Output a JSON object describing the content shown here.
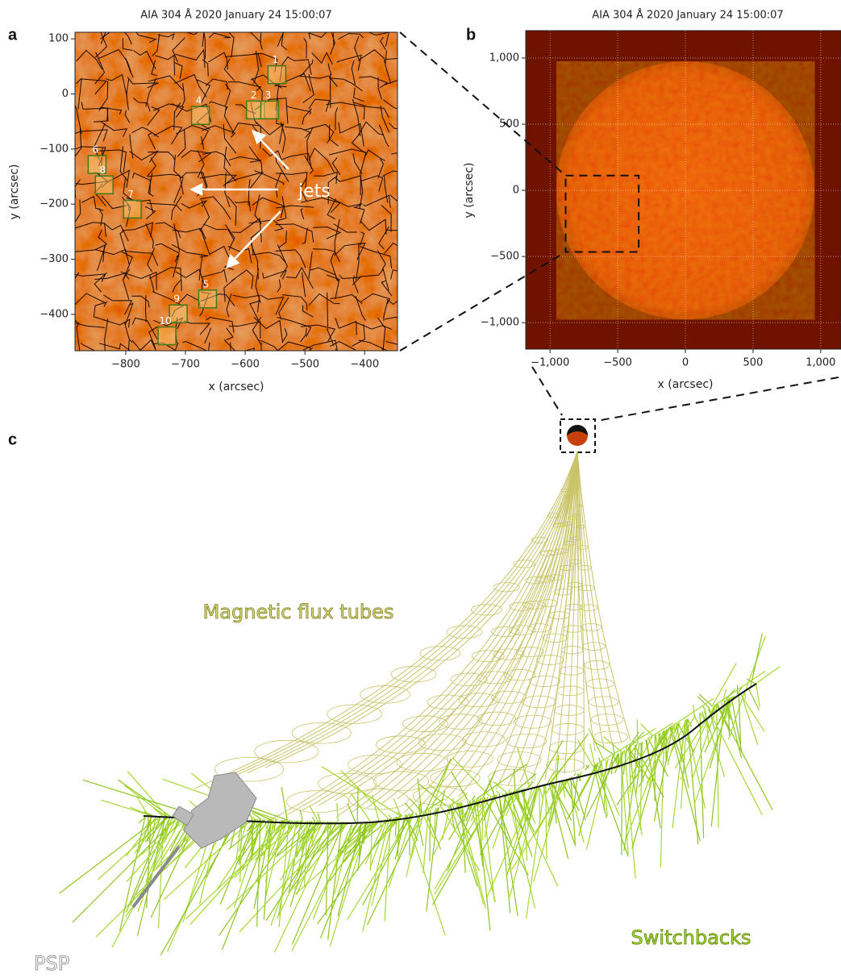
{
  "chart_data": [
    {
      "type": "image",
      "panel_label": "a",
      "title": "AIA 304 Å 2020 January 24 15:00:07",
      "xlabel": "x (arcsec)",
      "ylabel": "y (arcsec)",
      "xlim": [
        -885,
        -345
      ],
      "ylim": [
        -466,
        112
      ],
      "xticks": [
        {
          "value": -800,
          "label": "−800"
        },
        {
          "value": -700,
          "label": "−700"
        },
        {
          "value": -600,
          "label": "−600"
        },
        {
          "value": -500,
          "label": "−500"
        },
        {
          "value": -400,
          "label": "−400"
        }
      ],
      "yticks": [
        100,
        0,
        {
          "value": -100,
          "label": "−100"
        },
        {
          "value": -200,
          "label": "−200"
        },
        {
          "value": -300,
          "label": "−300"
        },
        {
          "value": -400,
          "label": "−400"
        }
      ],
      "grid": false,
      "regions": [
        {
          "label": "1",
          "x": -547,
          "y": 35
        },
        {
          "label": "2",
          "x": -583,
          "y": -29
        },
        {
          "label": "3",
          "x": -559,
          "y": -29
        },
        {
          "label": "4",
          "x": -675,
          "y": -39
        },
        {
          "label": "5",
          "x": -663,
          "y": -372
        },
        {
          "label": "6",
          "x": -848,
          "y": -128
        },
        {
          "label": "7",
          "x": -789,
          "y": -209
        },
        {
          "label": "8",
          "x": -836,
          "y": -165
        },
        {
          "label": "9",
          "x": -712,
          "y": -399
        },
        {
          "label": "10",
          "x": -731,
          "y": -439
        }
      ],
      "annotation": "jets"
    },
    {
      "type": "image",
      "panel_label": "b",
      "title": "AIA 304 Å 2020 January 24 15:00:07",
      "xlabel": "x (arcsec)",
      "ylabel": "y (arcsec)",
      "xlim": [
        -1180,
        1150
      ],
      "ylim": [
        -1200,
        1207
      ],
      "xticks": [
        {
          "value": -1000,
          "label": "−1,000"
        },
        {
          "value": -500,
          "label": "−500"
        },
        0,
        500,
        {
          "value": 1000,
          "label": "1,000"
        }
      ],
      "yticks": [
        {
          "value": 1000,
          "label": "1,000"
        },
        500,
        0,
        {
          "value": -500,
          "label": "−500"
        },
        {
          "value": -1000,
          "label": "−1,000"
        }
      ],
      "grid": true
    }
  ],
  "diagram": {
    "panel_label": "c",
    "flux_label": "Magnetic flux tubes",
    "switchback_label": "Switchbacks",
    "spacecraft_label": "PSP"
  }
}
